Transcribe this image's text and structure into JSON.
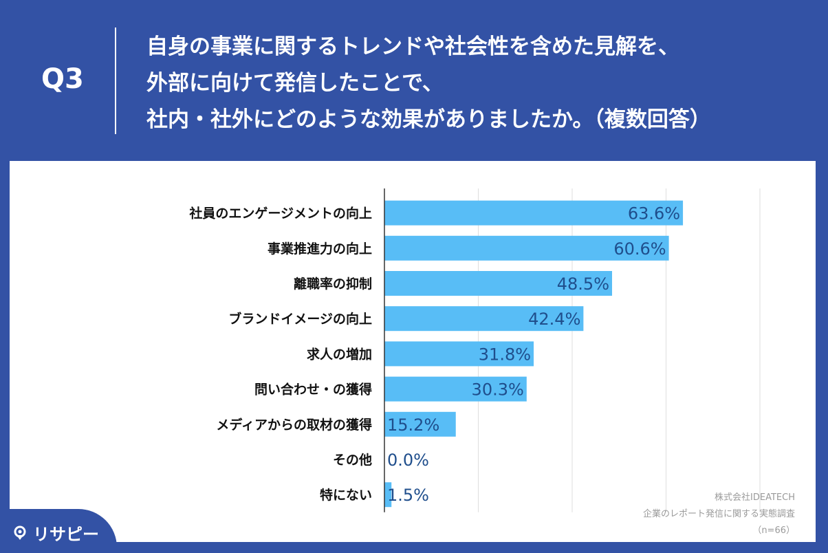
{
  "header": {
    "qnum": "Q3",
    "question_lines": [
      "自身の事業に関するトレンドや社会性を含めた見解を、",
      "外部に向けて発信したことで、",
      "社内・社外にどのような効果がありましたか。（複数回答）"
    ]
  },
  "source": {
    "company": "株式会社IDEATECH",
    "survey": "企業のレポート発信に関する実態調査",
    "n": "（n=66）"
  },
  "brand": {
    "logo_text": "リサピー"
  },
  "colors": {
    "background": "#3352a5",
    "bar": "#58bdf6",
    "value_label": "#1f4e8c",
    "grid": "#dedede",
    "axis": "#333333"
  },
  "chart_data": {
    "type": "bar",
    "orientation": "horizontal",
    "categories": [
      "社員のエンゲージメントの向上",
      "事業推進力の向上",
      "離職率の抑制",
      "ブランドイメージの向上",
      "求人の増加",
      "問い合わせ・の獲得",
      "メディアからの取材の獲得",
      "その他",
      "特にない"
    ],
    "values": [
      63.6,
      60.6,
      48.5,
      42.4,
      31.8,
      30.3,
      15.2,
      0.0,
      1.5
    ],
    "value_labels": [
      "63.6%",
      "60.6%",
      "48.5%",
      "42.4%",
      "31.8%",
      "30.3%",
      "15.2%",
      "0.0%",
      "1.5%"
    ],
    "xlim": [
      0,
      80
    ],
    "grid": true,
    "title": "",
    "xlabel": "",
    "ylabel": ""
  }
}
